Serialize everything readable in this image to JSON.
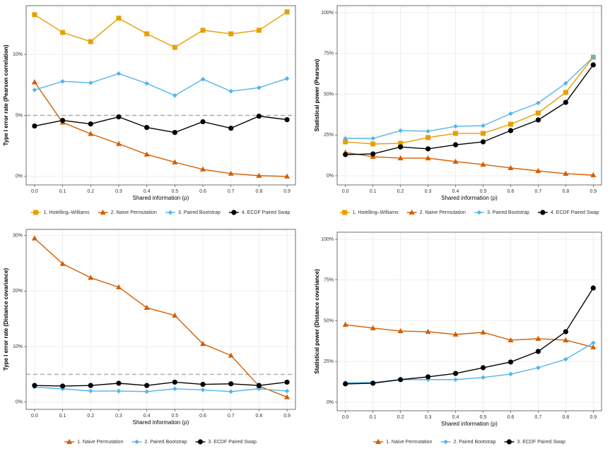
{
  "chart_data": [
    {
      "type": "line",
      "y_label": "Type I error rate (Pearson correlation)",
      "x_label": "Shared information (ρ)",
      "x": [
        0,
        0.1,
        0.2,
        0.3,
        0.4,
        0.5,
        0.6,
        0.7,
        0.8,
        0.9
      ],
      "xlim": [
        -0.03,
        0.93
      ],
      "xticks": [
        {
          "value": 0,
          "label": "0.0"
        },
        0.1,
        0.2,
        0.3,
        0.4,
        0.5,
        0.6,
        0.7,
        0.8,
        0.9
      ],
      "ylim": [
        -0.7,
        14.0
      ],
      "yticks": [
        {
          "value": 0,
          "label": "0%"
        },
        {
          "value": 5,
          "label": "5%"
        },
        {
          "value": 10,
          "label": "10%"
        }
      ],
      "grid": true,
      "hline": 5,
      "legend": "bottom",
      "series": [
        {
          "name": "1. Hotelling–Williams",
          "color": "#E69F00",
          "marker": "square",
          "values": [
            13.26,
            11.8,
            11.05,
            12.97,
            11.69,
            10.58,
            11.98,
            11.69,
            11.98,
            13.49
          ]
        },
        {
          "name": "2. Naive Permutation",
          "color": "#D55E00",
          "marker": "triangle",
          "values": [
            7.73,
            4.42,
            3.49,
            2.67,
            1.8,
            1.16,
            0.58,
            0.23,
            0.06,
            0.0
          ]
        },
        {
          "name": "3. Paired Bootstrap",
          "color": "#56B4E9",
          "marker": "diamond",
          "values": [
            7.09,
            7.79,
            7.67,
            8.43,
            7.62,
            6.63,
            7.97,
            6.98,
            7.27,
            8.02
          ]
        },
        {
          "name": "4. ECDF Paired Swap",
          "color": "#000000",
          "marker": "circle",
          "values": [
            4.13,
            4.59,
            4.3,
            4.88,
            4.01,
            3.6,
            4.48,
            3.95,
            4.94,
            4.65
          ]
        }
      ]
    },
    {
      "type": "line",
      "y_label": "Statistical power (Pearson)",
      "x_label": "Shared information (ρ)",
      "x": [
        0,
        0.1,
        0.2,
        0.3,
        0.4,
        0.5,
        0.6,
        0.7,
        0.8,
        0.9
      ],
      "xlim": [
        -0.03,
        0.93
      ],
      "xticks": [
        {
          "value": 0,
          "label": "0.0"
        },
        0.1,
        0.2,
        0.3,
        0.4,
        0.5,
        0.6,
        0.7,
        0.8,
        0.9
      ],
      "ylim": [
        -5.6,
        104.3
      ],
      "yticks": [
        {
          "value": 0,
          "label": "0%"
        },
        {
          "value": 25,
          "label": "25%"
        },
        {
          "value": 50,
          "label": "50%"
        },
        {
          "value": 75,
          "label": "75%"
        },
        {
          "value": 100,
          "label": "100%"
        }
      ],
      "grid": true,
      "legend": "bottom",
      "series": [
        {
          "name": "1. Hotelling–Williams",
          "color": "#E69F00",
          "marker": "square",
          "values": [
            20.8,
            19.5,
            19.9,
            23.4,
            26.0,
            26.0,
            31.6,
            38.5,
            51.1,
            72.7
          ]
        },
        {
          "name": "2. Naive Permutation",
          "color": "#D55E00",
          "marker": "triangle",
          "values": [
            14.3,
            11.7,
            10.8,
            10.8,
            8.7,
            6.9,
            4.8,
            3.0,
            1.3,
            0.4
          ]
        },
        {
          "name": "3. Paired Bootstrap",
          "color": "#56B4E9",
          "marker": "diamond",
          "values": [
            22.9,
            22.9,
            27.7,
            27.3,
            30.3,
            30.7,
            38.1,
            44.6,
            56.7,
            72.7
          ]
        },
        {
          "name": "4. ECDF Paired Swap",
          "color": "#000000",
          "marker": "circle",
          "values": [
            13.0,
            13.4,
            17.7,
            16.5,
            19.0,
            20.8,
            27.7,
            34.2,
            45.0,
            68.0
          ]
        }
      ]
    },
    {
      "type": "line",
      "y_label": "Type I error rate (Distance covariance)",
      "x_label": "Shared information (ρ)",
      "x": [
        0,
        0.1,
        0.2,
        0.3,
        0.4,
        0.5,
        0.6,
        0.7,
        0.8,
        0.9
      ],
      "xlim": [
        -0.03,
        0.93
      ],
      "xticks": [
        {
          "value": 0,
          "label": "0.0"
        },
        0.1,
        0.2,
        0.3,
        0.4,
        0.5,
        0.6,
        0.7,
        0.8,
        0.9
      ],
      "ylim": [
        -1.3,
        31.1
      ],
      "yticks": [
        {
          "value": 0,
          "label": "0%"
        },
        {
          "value": 10,
          "label": "10%"
        },
        {
          "value": 20,
          "label": "20%"
        },
        {
          "value": 30,
          "label": "30%"
        }
      ],
      "grid": true,
      "hline": 5,
      "legend": "bottom",
      "series": [
        {
          "name": "1. Naive Permutation",
          "color": "#D55E00",
          "marker": "triangle",
          "values": [
            29.5,
            24.9,
            22.4,
            20.7,
            17.0,
            15.6,
            10.5,
            8.4,
            2.9,
            0.9
          ]
        },
        {
          "name": "2. Paired Bootstrap",
          "color": "#56B4E9",
          "marker": "diamond",
          "values": [
            2.7,
            2.4,
            2.0,
            2.0,
            1.9,
            2.4,
            2.2,
            1.9,
            2.4,
            2.0
          ]
        },
        {
          "name": "3. ECDF Paired Swap",
          "color": "#000000",
          "marker": "circle",
          "values": [
            3.0,
            2.9,
            3.0,
            3.4,
            3.0,
            3.6,
            3.2,
            3.3,
            3.0,
            3.6
          ]
        }
      ]
    },
    {
      "type": "line",
      "y_label": "Statistical power (Distance covariance)",
      "x_label": "Shared information (ρ)",
      "x": [
        0,
        0.1,
        0.2,
        0.3,
        0.4,
        0.5,
        0.6,
        0.7,
        0.8,
        0.9
      ],
      "xlim": [
        -0.03,
        0.93
      ],
      "xticks": [
        {
          "value": 0,
          "label": "0.0"
        },
        0.1,
        0.2,
        0.3,
        0.4,
        0.5,
        0.6,
        0.7,
        0.8,
        0.9
      ],
      "ylim": [
        -5.2,
        104.3
      ],
      "yticks": [
        {
          "value": 0,
          "label": "0%"
        },
        {
          "value": 25,
          "label": "25%"
        },
        {
          "value": 50,
          "label": "50%"
        },
        {
          "value": 75,
          "label": "75%"
        },
        {
          "value": 100,
          "label": "100%"
        }
      ],
      "grid": true,
      "legend": "bottom",
      "series": [
        {
          "name": "1. Naive Permutation",
          "color": "#D55E00",
          "marker": "triangle",
          "values": [
            47.6,
            45.5,
            43.7,
            43.3,
            41.6,
            42.9,
            38.1,
            39.0,
            38.1,
            33.8
          ]
        },
        {
          "name": "2. Paired Bootstrap",
          "color": "#56B4E9",
          "marker": "diamond",
          "values": [
            12.1,
            12.1,
            13.9,
            13.9,
            13.9,
            15.2,
            17.3,
            21.2,
            26.4,
            36.4
          ]
        },
        {
          "name": "3. ECDF Paired Swap",
          "color": "#000000",
          "marker": "circle",
          "values": [
            11.3,
            11.7,
            13.9,
            15.6,
            17.7,
            21.2,
            24.7,
            31.2,
            43.3,
            70.1
          ]
        }
      ]
    }
  ]
}
